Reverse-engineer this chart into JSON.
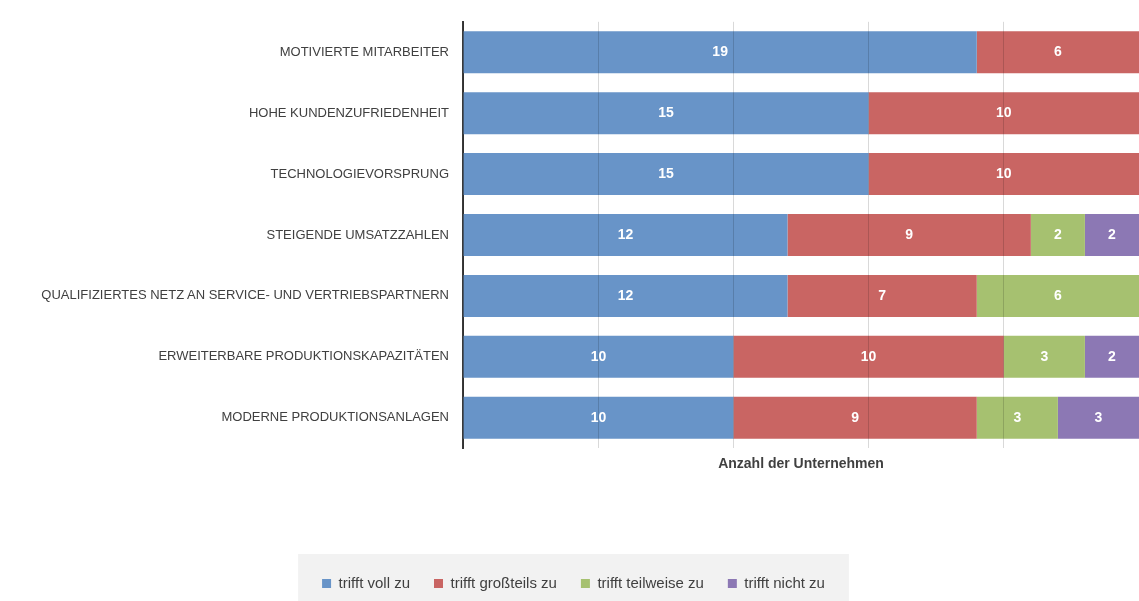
{
  "chart_data": {
    "type": "bar",
    "orientation": "horizontal",
    "stacked": true,
    "categories": [
      "MOTIVIERTE MITARBEITER",
      "HOHE KUNDENZUFRIEDENHEIT",
      "TECHNOLOGIEVORSPRUNG",
      "STEIGENDE UMSATZZAHLEN",
      "QUALIFIZIERTES NETZ AN SERVICE- UND VERTRIEBSPARTNERN",
      "ERWEITERBARE PRODUKTIONSKAPAZITÄTEN",
      "MODERNE PRODUKTIONSANLAGEN"
    ],
    "series": [
      {
        "name": "trifft voll zu",
        "color": "#6894c8",
        "values": [
          19,
          15,
          15,
          12,
          12,
          10,
          10
        ]
      },
      {
        "name": "trifft großteils zu",
        "color": "#c96563",
        "values": [
          6,
          10,
          10,
          9,
          7,
          10,
          9
        ]
      },
      {
        "name": "trifft teilweise zu",
        "color": "#a6c170",
        "values": [
          null,
          null,
          null,
          2,
          6,
          3,
          3
        ]
      },
      {
        "name": "trifft nicht zu",
        "color": "#8c78b4",
        "values": [
          null,
          null,
          null,
          2,
          null,
          2,
          3
        ]
      }
    ],
    "xlabel": "Anzahl der Unternehmen",
    "xlim": [
      0,
      25
    ],
    "xticks": [
      {
        "value": 0,
        "label": null
      },
      {
        "value": 5,
        "label": null
      },
      {
        "value": 10,
        "label": null
      },
      {
        "value": 15,
        "label": null
      },
      {
        "value": 20,
        "label": null
      }
    ],
    "grid": "x",
    "legend": "bottom",
    "data_labels": true,
    "tick_labels": "y"
  }
}
